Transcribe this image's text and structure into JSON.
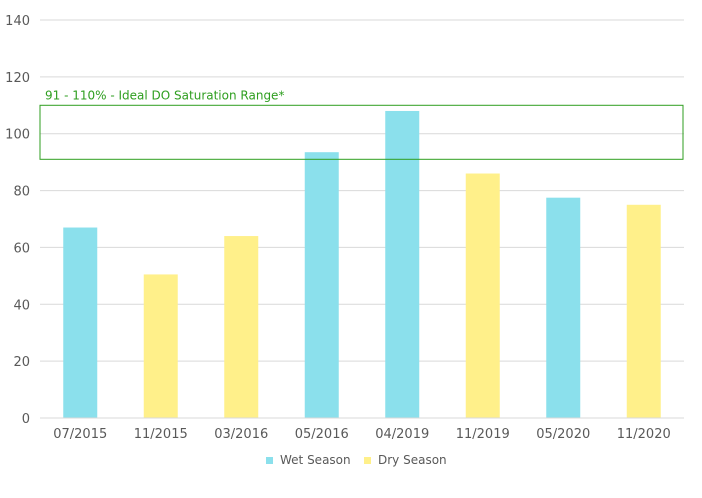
{
  "chart_data": {
    "type": "bar",
    "categories": [
      "07/2015",
      "11/2015",
      "03/2016",
      "05/2016",
      "04/2019",
      "11/2019",
      "05/2020",
      "11/2020"
    ],
    "values": [
      67,
      50.5,
      64,
      93.5,
      108,
      86,
      77.5,
      75
    ],
    "bar_series": [
      "Wet Season",
      "Dry Season",
      "Dry Season",
      "Wet Season",
      "Wet Season",
      "Dry Season",
      "Wet Season",
      "Dry Season"
    ],
    "legend": [
      {
        "name": "Wet Season",
        "color": "#8be0ec"
      },
      {
        "name": "Dry Season",
        "color": "#fff08a"
      }
    ],
    "legend_position": "bottom",
    "ylim": [
      0,
      140
    ],
    "yticks": [
      0,
      20,
      40,
      60,
      80,
      100,
      120,
      140
    ],
    "grid": true,
    "annotation": {
      "label": "91 - 110% - Ideal DO Saturation Range*",
      "range": [
        91,
        110
      ],
      "color": "#2e9e1f"
    },
    "title": "",
    "xlabel": "",
    "ylabel": ""
  }
}
